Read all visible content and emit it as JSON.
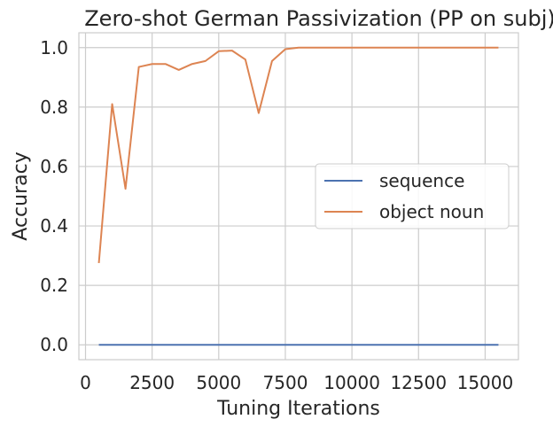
{
  "chart_data": {
    "type": "line",
    "title": "Zero-shot German Passivization (PP on subj)",
    "xlabel": "Tuning Iterations",
    "ylabel": "Accuracy",
    "xlim": [
      -250,
      16250
    ],
    "ylim": [
      -0.05,
      1.05
    ],
    "xticks": [
      0,
      2500,
      5000,
      7500,
      10000,
      12500,
      15000
    ],
    "xtick_labels": [
      "0",
      "2500",
      "5000",
      "7500",
      "10000",
      "12500",
      "15000"
    ],
    "yticks": [
      0.0,
      0.2,
      0.4,
      0.6,
      0.8,
      1.0
    ],
    "ytick_labels": [
      "0.0",
      "0.2",
      "0.4",
      "0.6",
      "0.8",
      "1.0"
    ],
    "grid": true,
    "legend_position": "center-right",
    "x": [
      500,
      1000,
      1500,
      2000,
      2500,
      3000,
      3500,
      4000,
      4500,
      5000,
      5500,
      6000,
      6500,
      7000,
      7500,
      8000,
      8500,
      9000,
      9500,
      10000,
      10500,
      11000,
      11500,
      12000,
      12500,
      13000,
      13500,
      14000,
      14500,
      15000,
      15500
    ],
    "series": [
      {
        "name": "sequence",
        "color": "#4c72b0",
        "values": [
          0,
          0,
          0,
          0,
          0,
          0,
          0,
          0,
          0,
          0,
          0,
          0,
          0,
          0,
          0,
          0,
          0,
          0,
          0,
          0,
          0,
          0,
          0,
          0,
          0,
          0,
          0,
          0,
          0,
          0,
          0
        ]
      },
      {
        "name": "object noun",
        "color": "#dd8452",
        "values": [
          0.275,
          0.81,
          0.525,
          0.935,
          0.945,
          0.945,
          0.925,
          0.945,
          0.955,
          0.988,
          0.99,
          0.96,
          0.78,
          0.955,
          0.995,
          1.0,
          1.0,
          1.0,
          1.0,
          1.0,
          1.0,
          1.0,
          1.0,
          1.0,
          1.0,
          1.0,
          1.0,
          1.0,
          1.0,
          1.0,
          1.0
        ]
      }
    ]
  }
}
